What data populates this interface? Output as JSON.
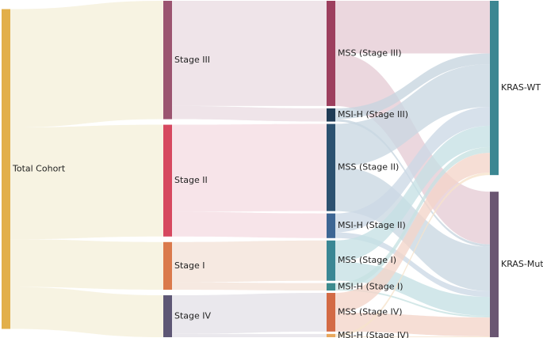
{
  "chart_data": {
    "type": "sankey",
    "title": "",
    "nodes": [
      {
        "id": "total",
        "label": "Total Cohort",
        "color": "#E2AF4A"
      },
      {
        "id": "s3",
        "label": "Stage III",
        "color": "#9B5470"
      },
      {
        "id": "s2",
        "label": "Stage II",
        "color": "#D6485F"
      },
      {
        "id": "s1",
        "label": "Stage I",
        "color": "#DA7A4C"
      },
      {
        "id": "s4",
        "label": "Stage IV",
        "color": "#5E5775"
      },
      {
        "id": "mss3",
        "label": "MSS (Stage III)",
        "color": "#9D3F5E"
      },
      {
        "id": "msi3",
        "label": "MSI-H (Stage III)",
        "color": "#1F3B55"
      },
      {
        "id": "mss2",
        "label": "MSS (Stage II)",
        "color": "#2C5170"
      },
      {
        "id": "msi2",
        "label": "MSI-H (Stage II)",
        "color": "#3D6694"
      },
      {
        "id": "mss1",
        "label": "MSS (Stage I)",
        "color": "#3A8794"
      },
      {
        "id": "msi1",
        "label": "MSI-H (Stage I)",
        "color": "#3C8B8E"
      },
      {
        "id": "mss4",
        "label": "MSS (Stage IV)",
        "color": "#D36A45"
      },
      {
        "id": "msi4",
        "label": "MSI-H (Stage IV)",
        "color": "#E8A85D"
      },
      {
        "id": "wt",
        "label": "KRAS-WT",
        "color": "#3C8792"
      },
      {
        "id": "mut",
        "label": "KRAS-Mut",
        "color": "#6A5672"
      }
    ],
    "links": [
      {
        "source": "total",
        "target": "s3",
        "value": 144,
        "color": "#F5EFDA"
      },
      {
        "source": "total",
        "target": "s2",
        "value": 136,
        "color": "#F5EFDA"
      },
      {
        "source": "total",
        "target": "s1",
        "value": 58,
        "color": "#F5EFDA"
      },
      {
        "source": "total",
        "target": "s4",
        "value": 51,
        "color": "#F5EFDA"
      },
      {
        "source": "s3",
        "target": "mss3",
        "value": 128,
        "color": "#EBDDE3"
      },
      {
        "source": "s3",
        "target": "msi3",
        "value": 16,
        "color": "#EBDDE3"
      },
      {
        "source": "s2",
        "target": "mss2",
        "value": 106,
        "color": "#F5DDE3"
      },
      {
        "source": "s2",
        "target": "msi2",
        "value": 30,
        "color": "#F5DDE3"
      },
      {
        "source": "s1",
        "target": "mss1",
        "value": 49,
        "color": "#F3E3D9"
      },
      {
        "source": "s1",
        "target": "msi1",
        "value": 9,
        "color": "#F3E3D9"
      },
      {
        "source": "s4",
        "target": "mss4",
        "value": 47,
        "color": "#E4E1E8"
      },
      {
        "source": "s4",
        "target": "msi4",
        "value": 4,
        "color": "#E4E1E8"
      },
      {
        "source": "mss3",
        "target": "wt",
        "value": 64,
        "color": "#E5CCD5"
      },
      {
        "source": "mss3",
        "target": "mut",
        "value": 64,
        "color": "#E5CCD5"
      },
      {
        "source": "msi3",
        "target": "wt",
        "value": 13,
        "color": "#C7D5DF"
      },
      {
        "source": "msi3",
        "target": "mut",
        "value": 3,
        "color": "#C7D5DF"
      },
      {
        "source": "mss2",
        "target": "wt",
        "value": 52,
        "color": "#C9D7E1"
      },
      {
        "source": "mss2",
        "target": "mut",
        "value": 54,
        "color": "#C9D7E1"
      },
      {
        "source": "msi2",
        "target": "wt",
        "value": 23,
        "color": "#CCD9E6"
      },
      {
        "source": "msi2",
        "target": "mut",
        "value": 7,
        "color": "#CCD9E6"
      },
      {
        "source": "mss1",
        "target": "wt",
        "value": 26,
        "color": "#C5E0E4"
      },
      {
        "source": "mss1",
        "target": "mut",
        "value": 23,
        "color": "#C5E0E4"
      },
      {
        "source": "msi1",
        "target": "wt",
        "value": 7,
        "color": "#C6E2E2"
      },
      {
        "source": "msi1",
        "target": "mut",
        "value": 2,
        "color": "#C6E2E2"
      },
      {
        "source": "mss4",
        "target": "wt",
        "value": 24,
        "color": "#F3D5C9"
      },
      {
        "source": "mss4",
        "target": "mut",
        "value": 23,
        "color": "#F3D5C9"
      },
      {
        "source": "msi4",
        "target": "wt",
        "value": 3,
        "color": "#F6E3CB"
      },
      {
        "source": "msi4",
        "target": "mut",
        "value": 1,
        "color": "#F6E3CB"
      }
    ],
    "columns": [
      [
        "total"
      ],
      [
        "s3",
        "s2",
        "s1",
        "s4"
      ],
      [
        "mss3",
        "msi3",
        "mss2",
        "msi2",
        "mss1",
        "msi1",
        "mss4",
        "msi4"
      ],
      [
        "wt",
        "mut"
      ]
    ]
  }
}
